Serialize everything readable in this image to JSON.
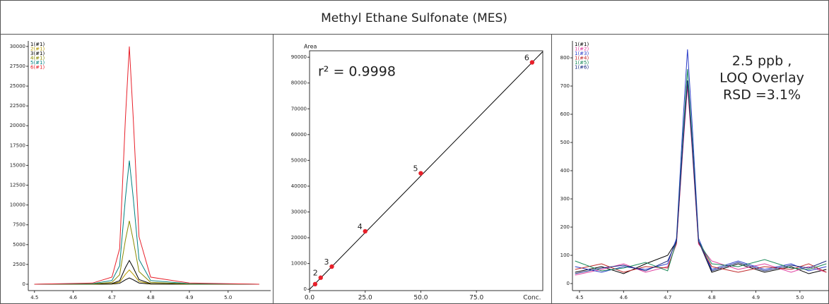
{
  "header": {
    "title": "Methyl Ethane Sulfonate (MES)"
  },
  "chart_data": [
    {
      "type": "line",
      "x": [
        4.5,
        4.65,
        4.7,
        4.72,
        4.735,
        4.745,
        4.755,
        4.77,
        4.8,
        4.9,
        5.08
      ],
      "series": [
        {
          "name": "1(#1)",
          "color": "#000000",
          "values": [
            0,
            4,
            24,
            120,
            560,
            800,
            560,
            160,
            24,
            4,
            0
          ]
        },
        {
          "name": "2(#1)",
          "color": "#b59a00",
          "values": [
            0,
            9,
            54,
            270,
            1260,
            1800,
            1260,
            360,
            54,
            9,
            0
          ]
        },
        {
          "name": "3(#1)",
          "color": "#000000",
          "values": [
            0,
            15,
            90,
            450,
            2100,
            3000,
            2100,
            600,
            90,
            15,
            0
          ]
        },
        {
          "name": "4(#1)",
          "color": "#8a8a00",
          "values": [
            0,
            40,
            240,
            1200,
            5600,
            8000,
            5600,
            1600,
            240,
            40,
            0
          ]
        },
        {
          "name": "5(#1)",
          "color": "#008080",
          "values": [
            0,
            80,
            470,
            2340,
            10920,
            15600,
            10920,
            3120,
            470,
            80,
            0
          ]
        },
        {
          "name": "6(#1)",
          "color": "#e8202a",
          "values": [
            0,
            150,
            900,
            4500,
            21000,
            30000,
            21000,
            6000,
            900,
            150,
            0
          ]
        }
      ],
      "xlim": [
        4.484,
        5.11
      ],
      "xticks": [
        4.5,
        4.6,
        4.7,
        4.8,
        4.9,
        {
          "value": 5,
          "label": "5.0"
        }
      ],
      "ylim": [
        -800,
        30700
      ],
      "yticks": [
        0,
        2500,
        5000,
        7500,
        10000,
        12500,
        15000,
        17500,
        20000,
        22500,
        25000,
        27500,
        30000
      ]
    },
    {
      "type": "scatter",
      "title": "r² = 0.9998",
      "ylabel": "Area",
      "xlabel": "Conc.",
      "x": [
        2.5,
        5,
        10,
        25,
        50,
        100
      ],
      "values": [
        2000,
        4500,
        8800,
        22500,
        45000,
        88000
      ],
      "point_labels": [
        null,
        "2",
        "3",
        "4",
        "5",
        "6"
      ],
      "color": "#e8202a",
      "fit": {
        "x": [
          0,
          104.8
        ],
        "y": [
          0,
          92200
        ]
      },
      "xlim": [
        0,
        104.8
      ],
      "xticks": [
        {
          "value": 0,
          "label": "0.0"
        },
        {
          "value": 25,
          "label": "25.0"
        },
        {
          "value": 50,
          "label": "50.0"
        },
        {
          "value": 75,
          "label": "75.0"
        }
      ],
      "ylim": [
        -500,
        92500
      ],
      "yticks": [
        0,
        10000,
        20000,
        30000,
        40000,
        50000,
        60000,
        70000,
        80000,
        90000
      ]
    },
    {
      "type": "line",
      "annotation": [
        "2.5 ppb ,",
        "LOQ Overlay",
        "RSD =3.1%"
      ],
      "x": [
        4.49,
        4.55,
        4.6,
        4.65,
        4.7,
        4.72,
        4.735,
        4.745,
        4.755,
        4.77,
        4.8,
        4.86,
        4.92,
        4.98,
        5.02,
        5.06
      ],
      "series": [
        {
          "name": "1(#1)",
          "color": "#000000",
          "values": [
            40,
            60,
            35,
            70,
            100,
            150,
            505,
            720,
            505,
            150,
            40,
            70,
            40,
            60,
            35,
            50
          ]
        },
        {
          "name": "1(#2)",
          "color": "#e040a0",
          "values": [
            30,
            50,
            70,
            40,
            60,
            140,
            490,
            700,
            490,
            140,
            80,
            50,
            70,
            40,
            60,
            40
          ]
        },
        {
          "name": "1(#3)",
          "color": "#2a3cc8",
          "values": [
            60,
            40,
            60,
            50,
            70,
            160,
            580,
            830,
            580,
            160,
            50,
            80,
            50,
            70,
            45,
            60
          ]
        },
        {
          "name": "1(#4)",
          "color": "#c0282a",
          "values": [
            50,
            70,
            40,
            60,
            55,
            145,
            500,
            710,
            500,
            145,
            60,
            40,
            60,
            50,
            70,
            40
          ]
        },
        {
          "name": "1(#5)",
          "color": "#1a8a5a",
          "values": [
            80,
            45,
            55,
            75,
            45,
            150,
            530,
            760,
            530,
            150,
            70,
            60,
            85,
            55,
            50,
            70
          ]
        },
        {
          "name": "1(#6)",
          "color": "#1a2a80",
          "values": [
            35,
            55,
            65,
            45,
            80,
            150,
            505,
            720,
            505,
            150,
            45,
            75,
            45,
            65,
            55,
            80
          ]
        }
      ],
      "xlim": [
        4.484,
        5.066
      ],
      "xticks": [
        4.5,
        4.6,
        4.7,
        4.8,
        4.9,
        {
          "value": 5,
          "label": "5.0"
        }
      ],
      "ylim": [
        -25,
        860
      ],
      "yticks": [
        0,
        100,
        200,
        300,
        400,
        500,
        600,
        700,
        800
      ]
    }
  ]
}
